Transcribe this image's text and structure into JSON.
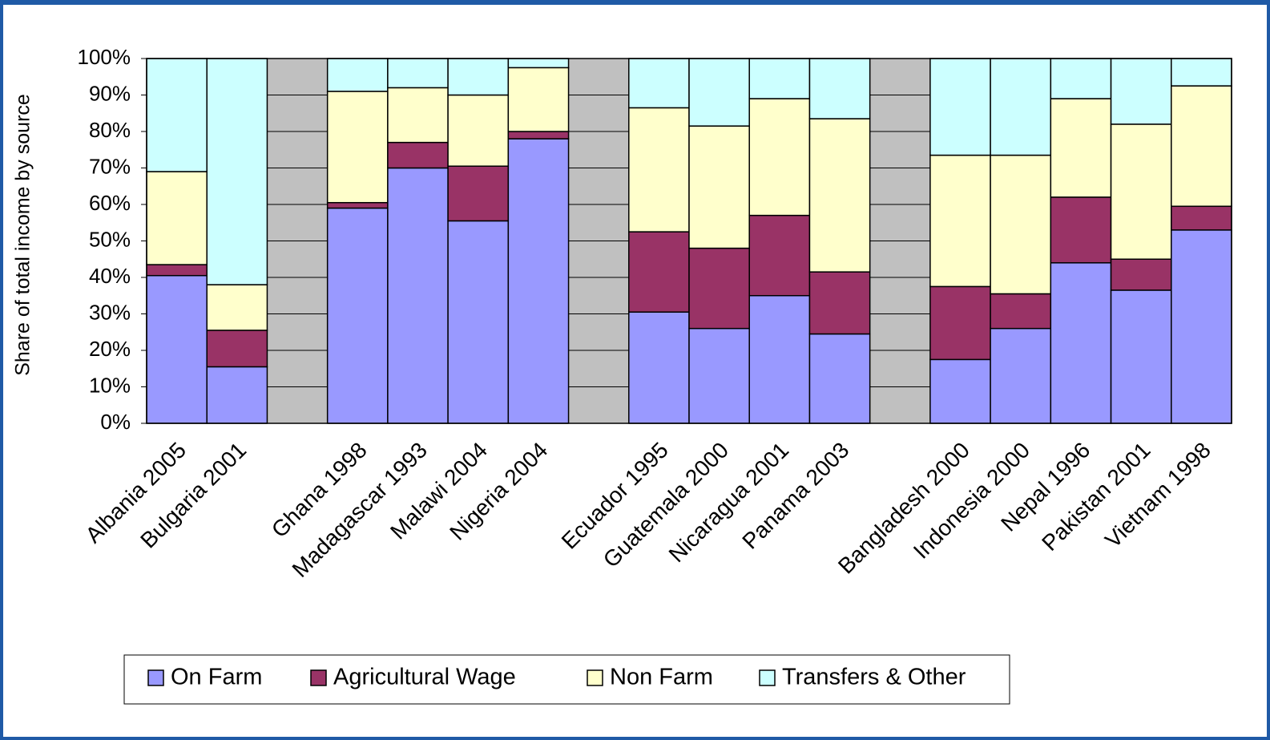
{
  "chart_data": {
    "type": "stacked_bar",
    "y_label": "Share of total income by source",
    "categories": [
      "Albania 2005",
      "Bulgaria 2001",
      null,
      "Ghana 1998",
      "Madagascar 1993",
      "Malawi 2004",
      "Nigeria 2004",
      null,
      "Ecuador 1995",
      "Guatemala 2000",
      "Nicaragua 2001",
      "Panama 2003",
      null,
      "Bangladesh 2000",
      "Indonesia 2000",
      "Nepal 1996",
      "Pakistan 2001",
      "Vietnam 1998"
    ],
    "series": [
      {
        "name": "On Farm",
        "color": "#9999ff",
        "values": [
          40.5,
          15.5,
          null,
          59,
          70,
          55.5,
          78,
          null,
          30.5,
          26,
          35,
          24.5,
          null,
          17.5,
          26,
          44,
          36.5,
          53
        ]
      },
      {
        "name": "Agricultural Wage",
        "color": "#993366",
        "values": [
          3,
          10,
          null,
          1.5,
          7,
          15,
          2,
          null,
          22,
          22,
          22,
          17,
          null,
          20,
          9.5,
          18,
          8.5,
          6.5
        ]
      },
      {
        "name": "Non Farm",
        "color": "#ffffcc",
        "values": [
          25.5,
          12.5,
          null,
          30.5,
          15,
          19.5,
          17.5,
          null,
          34,
          33.5,
          32,
          42,
          null,
          36,
          38,
          27,
          37,
          33
        ]
      },
      {
        "name": "Transfers & Other",
        "color": "#ccffff",
        "values": [
          31,
          62,
          null,
          9,
          8,
          10,
          2.5,
          null,
          13.5,
          18.5,
          11,
          16.5,
          null,
          26.5,
          26.5,
          11,
          18,
          7.5
        ]
      }
    ],
    "ylim": [
      0,
      100
    ],
    "yticks": [
      {
        "value": 0,
        "label": "0%"
      },
      {
        "value": 10,
        "label": "10%"
      },
      {
        "value": 20,
        "label": "20%"
      },
      {
        "value": 30,
        "label": "30%"
      },
      {
        "value": 40,
        "label": "40%"
      },
      {
        "value": 50,
        "label": "50%"
      },
      {
        "value": 60,
        "label": "60%"
      },
      {
        "value": 70,
        "label": "70%"
      },
      {
        "value": 80,
        "label": "80%"
      },
      {
        "value": 90,
        "label": "90%"
      },
      {
        "value": 100,
        "label": "100%"
      }
    ],
    "grid": true,
    "legend": "bottom"
  }
}
